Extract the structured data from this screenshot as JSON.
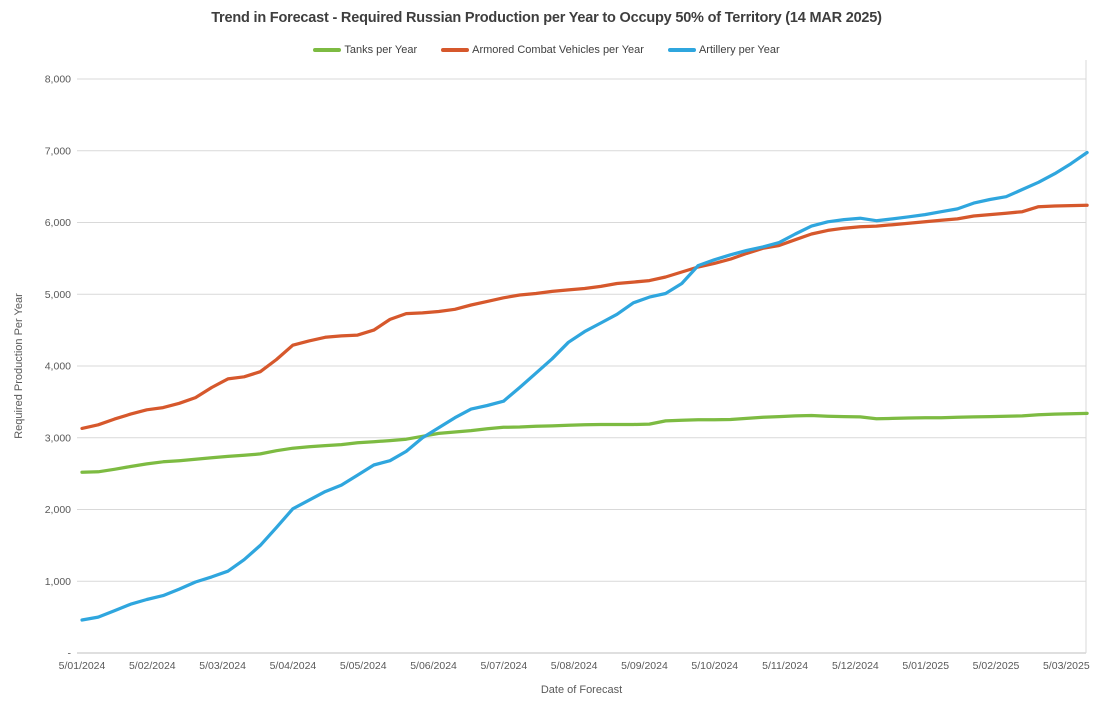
{
  "title": "Trend in Forecast - Required Russian Production per Year to Occupy 50% of Territory (14 MAR 2025)",
  "legend": {
    "items": [
      {
        "label": "Tanks per Year",
        "color": "#7DBB42"
      },
      {
        "label": "Armored Combat Vehicles per Year",
        "color": "#D6582C"
      },
      {
        "label": "Artillery per Year",
        "color": "#2FA6DE"
      }
    ]
  },
  "axes": {
    "y_title": "Required Production Per Year",
    "x_title": "Date of Forecast",
    "y_tick_labels": [
      "-",
      "1,000",
      "2,000",
      "3,000",
      "4,000",
      "5,000",
      "6,000",
      "7,000",
      "8,000"
    ],
    "x_tick_labels": [
      "5/01/2024",
      "5/02/2024",
      "5/03/2024",
      "5/04/2024",
      "5/05/2024",
      "5/06/2024",
      "5/07/2024",
      "5/08/2024",
      "5/09/2024",
      "5/10/2024",
      "5/11/2024",
      "5/12/2024",
      "5/01/2025",
      "5/02/2025",
      "5/03/2025"
    ]
  },
  "colors": {
    "gridline": "#D9D9D9",
    "axis_line": "#BFBFBF",
    "plot_border": "#D9D9D9",
    "tick_text": "#595959",
    "title_text": "#3E3E3E"
  },
  "chart_data": {
    "type": "line",
    "title": "Trend in Forecast - Required Russian Production per Year to Occupy 50% of Territory (14 MAR 2025)",
    "xlabel": "Date of Forecast",
    "ylabel": "Required Production Per Year",
    "ylim": [
      0,
      8000
    ],
    "y_tick_step": 1000,
    "grid": "horizontal",
    "legend_position": "top-center",
    "x_tick_labels": [
      "5/01/2024",
      "5/02/2024",
      "5/03/2024",
      "5/04/2024",
      "5/05/2024",
      "5/06/2024",
      "5/07/2024",
      "5/08/2024",
      "5/09/2024",
      "5/10/2024",
      "5/11/2024",
      "5/12/2024",
      "5/01/2025",
      "5/02/2025",
      "5/03/2025"
    ],
    "x_unit": "days since 5/01/2024, weekly forecast points ending 14 MAR 2025",
    "days": [
      0,
      7,
      14,
      21,
      28,
      35,
      42,
      49,
      56,
      63,
      70,
      77,
      84,
      91,
      98,
      105,
      112,
      119,
      126,
      133,
      140,
      147,
      154,
      161,
      168,
      175,
      182,
      189,
      196,
      203,
      210,
      217,
      224,
      231,
      238,
      245,
      252,
      259,
      266,
      273,
      280,
      287,
      294,
      301,
      308,
      315,
      322,
      329,
      336,
      343,
      350,
      357,
      364,
      371,
      378,
      385,
      392,
      399,
      406,
      413,
      420,
      427,
      434
    ],
    "series": [
      {
        "name": "Tanks per Year",
        "color": "#7DBB42",
        "values": [
          2520,
          2525,
          2560,
          2600,
          2635,
          2665,
          2680,
          2700,
          2720,
          2740,
          2755,
          2775,
          2820,
          2855,
          2875,
          2890,
          2905,
          2930,
          2945,
          2960,
          2980,
          3020,
          3060,
          3080,
          3100,
          3125,
          3145,
          3150,
          3160,
          3165,
          3175,
          3180,
          3185,
          3185,
          3185,
          3190,
          3235,
          3245,
          3250,
          3250,
          3255,
          3270,
          3285,
          3295,
          3305,
          3310,
          3300,
          3295,
          3290,
          3265,
          3270,
          3275,
          3280,
          3280,
          3285,
          3290,
          3295,
          3300,
          3305,
          3320,
          3330,
          3335,
          3340
        ]
      },
      {
        "name": "Armored Combat Vehicles per Year",
        "color": "#D6582C",
        "values": [
          3130,
          3180,
          3260,
          3330,
          3390,
          3420,
          3480,
          3560,
          3700,
          3820,
          3850,
          3920,
          4090,
          4290,
          4350,
          4400,
          4420,
          4430,
          4500,
          4650,
          4730,
          4740,
          4760,
          4790,
          4850,
          4900,
          4950,
          4990,
          5010,
          5040,
          5060,
          5080,
          5110,
          5150,
          5170,
          5190,
          5240,
          5310,
          5380,
          5430,
          5490,
          5570,
          5640,
          5680,
          5760,
          5840,
          5890,
          5920,
          5940,
          5950,
          5970,
          5990,
          6010,
          6030,
          6050,
          6090,
          6110,
          6130,
          6150,
          6220,
          6230,
          6235,
          6240
        ]
      },
      {
        "name": "Artillery per Year",
        "color": "#2FA6DE",
        "values": [
          460,
          500,
          590,
          680,
          745,
          800,
          890,
          990,
          1060,
          1140,
          1300,
          1500,
          1750,
          2010,
          2130,
          2250,
          2340,
          2480,
          2620,
          2680,
          2810,
          3000,
          3140,
          3280,
          3400,
          3450,
          3510,
          3700,
          3900,
          4100,
          4330,
          4480,
          4600,
          4720,
          4880,
          4960,
          5010,
          5150,
          5400,
          5480,
          5550,
          5610,
          5660,
          5720,
          5840,
          5950,
          6010,
          6040,
          6060,
          6025,
          6050,
          6080,
          6110,
          6150,
          6190,
          6270,
          6320,
          6360,
          6460,
          6560,
          6680,
          6820,
          6975
        ]
      }
    ]
  }
}
